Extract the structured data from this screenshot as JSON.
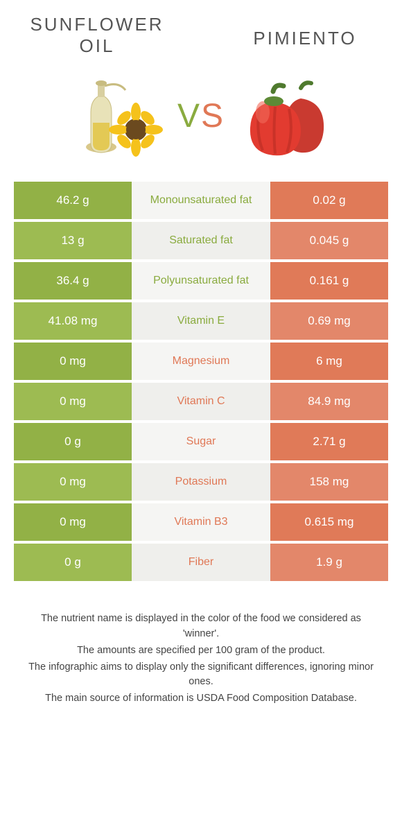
{
  "colors": {
    "left_primary": "#92b146",
    "left_alt": "#9dbb52",
    "right_primary": "#e07a58",
    "right_alt": "#e3876a",
    "mid_bg": "#f5f5f3",
    "mid_alt": "#efefec",
    "green_text": "#8aab3f",
    "orange_text": "#e07856"
  },
  "foods": {
    "left": {
      "name": "SUNFLOWER OIL"
    },
    "right": {
      "name": "PIMIENTO"
    }
  },
  "vs": {
    "v": "V",
    "s": "S"
  },
  "rows": [
    {
      "left": "46.2 g",
      "label": "Monounsaturated fat",
      "right": "0.02 g",
      "winner": "left"
    },
    {
      "left": "13 g",
      "label": "Saturated fat",
      "right": "0.045 g",
      "winner": "left"
    },
    {
      "left": "36.4 g",
      "label": "Polyunsaturated fat",
      "right": "0.161 g",
      "winner": "left"
    },
    {
      "left": "41.08 mg",
      "label": "Vitamin E",
      "right": "0.69 mg",
      "winner": "left"
    },
    {
      "left": "0 mg",
      "label": "Magnesium",
      "right": "6 mg",
      "winner": "right"
    },
    {
      "left": "0 mg",
      "label": "Vitamin C",
      "right": "84.9 mg",
      "winner": "right"
    },
    {
      "left": "0 g",
      "label": "Sugar",
      "right": "2.71 g",
      "winner": "right"
    },
    {
      "left": "0 mg",
      "label": "Potassium",
      "right": "158 mg",
      "winner": "right"
    },
    {
      "left": "0 mg",
      "label": "Vitamin B3",
      "right": "0.615 mg",
      "winner": "right"
    },
    {
      "left": "0 g",
      "label": "Fiber",
      "right": "1.9 g",
      "winner": "right"
    }
  ],
  "notes": [
    "The nutrient name is displayed in the color of the food we considered as 'winner'.",
    "The amounts are specified per 100 gram of the product.",
    "The infographic aims to display only the significant differences, ignoring minor ones.",
    "The main source of information is USDA Food Composition Database."
  ]
}
